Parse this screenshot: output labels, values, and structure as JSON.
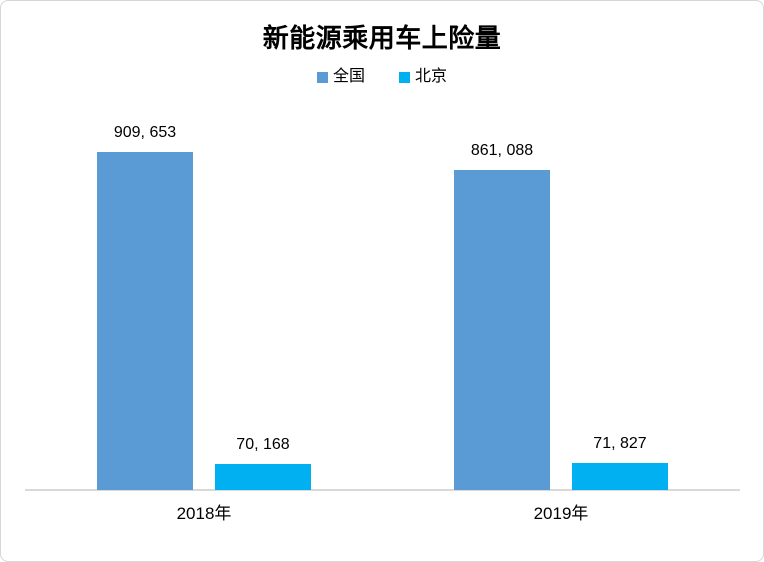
{
  "window": {
    "background": "#FFFFFF",
    "border_color": "#D6D6D6"
  },
  "chart_data": {
    "type": "bar",
    "title": "新能源乘用车上险量",
    "categories": [
      "2018年",
      "2019年"
    ],
    "series": [
      {
        "name": "全国",
        "color": "#5B9BD5",
        "values": [
          909653,
          861088
        ],
        "data_labels": [
          "909, 653",
          "861, 088"
        ]
      },
      {
        "name": "北京",
        "color": "#00B0F0",
        "values": [
          70168,
          71827
        ],
        "data_labels": [
          "70, 168",
          "71, 827"
        ]
      }
    ],
    "xlabel": "",
    "ylabel": "",
    "ylim": [
      0,
      909653
    ],
    "grid": false,
    "legend_position": "top-center",
    "data_labels_shown": true,
    "axis_line_color": "#D9D9D9",
    "label_color": "#000000"
  }
}
